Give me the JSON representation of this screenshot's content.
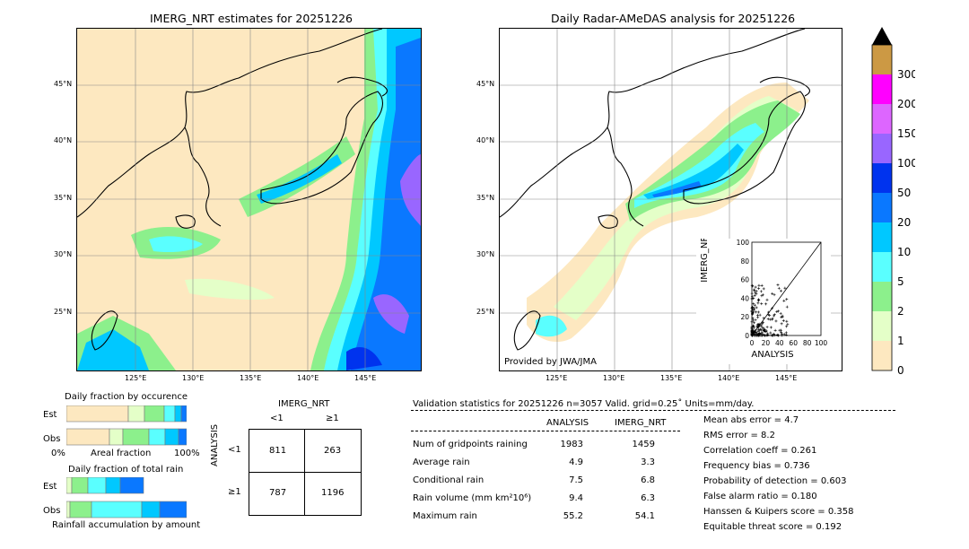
{
  "left_map": {
    "title": "IMERG_NRT estimates for 20251226",
    "lat_labels": [
      "45°N",
      "40°N",
      "35°N",
      "30°N",
      "25°N"
    ],
    "lon_labels": [
      "125°E",
      "130°E",
      "135°E",
      "140°E",
      "145°E"
    ]
  },
  "right_map": {
    "title": "Daily Radar-AMeDAS analysis for 20251226",
    "credit": "Provided by JWA/JMA",
    "lat_labels": [
      "45°N",
      "40°N",
      "35°N",
      "30°N",
      "25°N"
    ],
    "lon_labels": [
      "125°E",
      "130°E",
      "135°E",
      "140°E",
      "145°E"
    ]
  },
  "colorbar": {
    "labels": [
      "0",
      "1",
      "2",
      "5",
      "10",
      "20",
      "50",
      "100",
      "150",
      "200",
      "300"
    ],
    "colors": [
      "#fde8c0",
      "#e4ffc8",
      "#8cf08c",
      "#5affff",
      "#00c8ff",
      "#0a78ff",
      "#0033ee",
      "#9966ff",
      "#dd66ff",
      "#ff00ff",
      "#cc9944"
    ],
    "extend_color": "#000000"
  },
  "scatter": {
    "ylabel": "IMERG_NRT",
    "xlabel": "ANALYSIS",
    "ticks": [
      "0",
      "20",
      "40",
      "60",
      "80",
      "100"
    ]
  },
  "occurrence": {
    "title": "Daily fraction by occurence",
    "rows": [
      "Est",
      "Obs"
    ],
    "axis_left": "0%",
    "axis_mid": "Areal fraction",
    "axis_right": "100%"
  },
  "total_rain": {
    "title": "Daily fraction of total rain",
    "rows": [
      "Est",
      "Obs"
    ],
    "footer": "Rainfall accumulation by amount"
  },
  "contingency": {
    "col_header": "IMERG_NRT",
    "col_labels": [
      "<1",
      "≥1"
    ],
    "row_header": "ANALYSIS",
    "row_labels": [
      "<1",
      "≥1"
    ],
    "cells": [
      [
        "811",
        "263"
      ],
      [
        "787",
        "1196"
      ]
    ]
  },
  "validation": {
    "header": "Validation statistics for 20251226  n=3057 Valid. grid=0.25˚ Units=mm/day.",
    "col_analysis": "ANALYSIS",
    "col_imerg": "IMERG_NRT",
    "rows": [
      {
        "label": "Num of gridpoints raining",
        "analysis": "1983",
        "imerg": "1459"
      },
      {
        "label": "Average rain",
        "analysis": "4.9",
        "imerg": "3.3"
      },
      {
        "label": "Conditional rain",
        "analysis": "7.5",
        "imerg": "6.8"
      },
      {
        "label": "Rain volume (mm km²10⁶)",
        "analysis": "9.4",
        "imerg": "6.3"
      },
      {
        "label": "Maximum rain",
        "analysis": "55.2",
        "imerg": "54.1"
      }
    ],
    "scores": [
      "Mean abs error =    4.7",
      "RMS error =    8.2",
      "Correlation coeff =  0.261",
      "Frequency bias =  0.736",
      "Probability of detection =  0.603",
      "False alarm ratio =  0.180",
      "Hanssen & Kuipers score =  0.358",
      "Equitable threat score =  0.192"
    ]
  }
}
